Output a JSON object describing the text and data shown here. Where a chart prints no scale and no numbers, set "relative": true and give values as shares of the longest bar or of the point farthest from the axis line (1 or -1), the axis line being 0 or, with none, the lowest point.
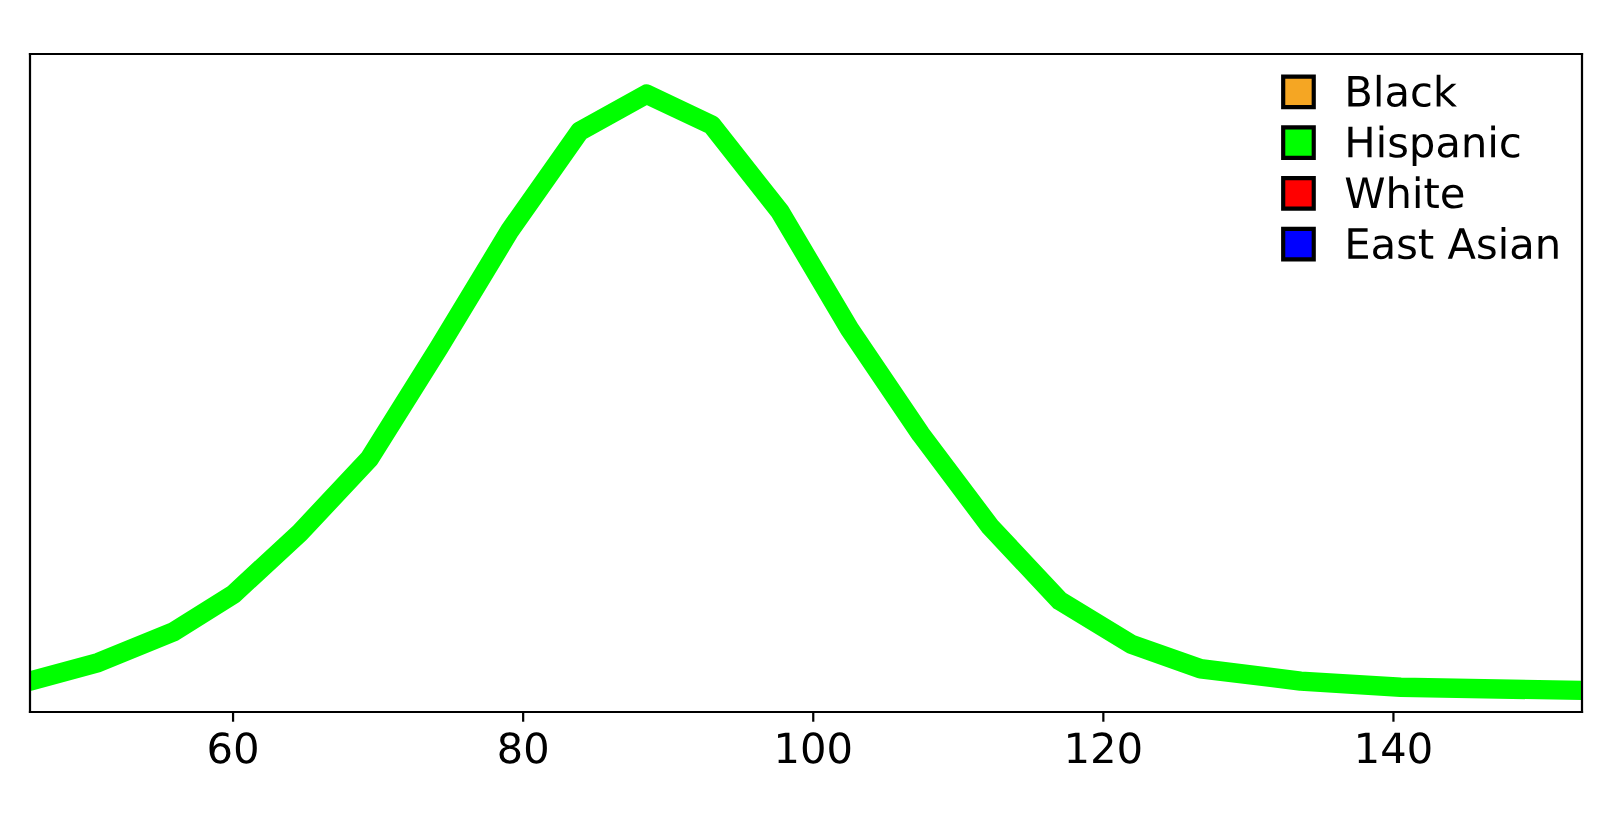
{
  "chart_data": {
    "type": "line",
    "relative": true,
    "x": [
      46,
      50.7,
      55.9,
      60,
      64.6,
      69.4,
      74.2,
      79.1,
      83.9,
      88.5,
      93,
      97.7,
      102.5,
      107.4,
      112.2,
      117,
      121.9,
      126.7,
      133.6,
      140.5,
      153
    ],
    "xlim": [
      46,
      153
    ],
    "xticks": [
      60,
      80,
      100,
      120,
      140
    ],
    "tick_labels": "x",
    "legend": "top right",
    "grid": false,
    "marker": "none",
    "line_style": "solid",
    "series": [
      {
        "name": "Black",
        "color": "#f5a623",
        "values": [
          null,
          null,
          null,
          null,
          null,
          null,
          null,
          null,
          null,
          null,
          null,
          null,
          null,
          null,
          null,
          null,
          null,
          null,
          null,
          null,
          null
        ]
      },
      {
        "name": "Hispanic",
        "color": "#00ff00",
        "values": [
          0.05,
          0.08,
          0.13,
          0.19,
          0.29,
          0.41,
          0.59,
          0.78,
          0.94,
          1,
          0.95,
          0.81,
          0.62,
          0.45,
          0.3,
          0.18,
          0.11,
          0.07,
          0.05,
          0.04,
          0.035
        ]
      },
      {
        "name": "White",
        "color": "#ff0000",
        "values": [
          null,
          null,
          null,
          null,
          null,
          null,
          null,
          null,
          null,
          null,
          null,
          null,
          null,
          null,
          null,
          null,
          null,
          null,
          null,
          null,
          null
        ]
      },
      {
        "name": "East Asian",
        "color": "#0000ff",
        "values": [
          null,
          null,
          null,
          null,
          null,
          null,
          null,
          null,
          null,
          null,
          null,
          null,
          null,
          null,
          null,
          null,
          null,
          null,
          null,
          null,
          null
        ]
      }
    ]
  }
}
